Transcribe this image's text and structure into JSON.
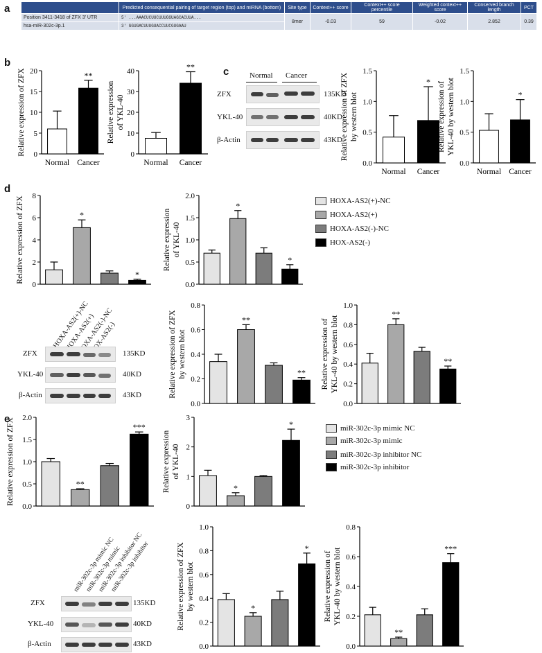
{
  "panels": {
    "a": "a",
    "b": "b",
    "c": "c",
    "d": "d",
    "e": "e"
  },
  "table": {
    "headers": [
      "",
      "Predicted consequential pairing of target region (top) and miRNA (bottom)",
      "Site type",
      "Context++ score",
      "Context++ score percentile",
      "Weighted context++ score",
      "Conserved branch length",
      "PCT"
    ],
    "row1_label": "Position 3411-3418 of ZFX 3' UTR",
    "row1_pairing": "5' ...AAACUCUUCUUUGGUAGCACUUA...",
    "row2_label": "hsa-miR-302c-3p.1",
    "row2_pairing": "3'        GGUGACUUUGUACCUUCGUGAAU",
    "row2_values": [
      "8mer",
      "-0.03",
      "59",
      "-0.02",
      "2.852",
      "0.39"
    ]
  },
  "blots": {
    "c": {
      "lanes": [
        "Normal",
        "Cancer"
      ],
      "rows": [
        "ZFX",
        "YKL-40",
        "β-Actin"
      ],
      "kd": [
        "135KD",
        "40KD",
        "43KD"
      ]
    },
    "d": {
      "lanes": [
        "HOXA-AS2(+)-NC",
        "HOXA-AS2(+)",
        "HOXA-AS2(-)-NC",
        "HOX-AS2(-)"
      ],
      "rows": [
        "ZFX",
        "YKL-40",
        "β-Actin"
      ],
      "kd": [
        "135KD",
        "40KD",
        "43KD"
      ]
    },
    "e": {
      "lanes": [
        "miR-302c-3p mimic NC",
        "miR-302c-3p mimic",
        "miR-302c-3p inhibitor NC",
        "miR-302c-3p inhibitor"
      ],
      "rows": [
        "ZFX",
        "YKL-40",
        "β-Actin"
      ],
      "kd": [
        "135KD",
        "40KD",
        "43KD"
      ]
    }
  },
  "legends": {
    "d": [
      {
        "label": "HOXA-AS2(+)-NC",
        "color": "#e4e4e4"
      },
      {
        "label": "HOXA-AS2(+)",
        "color": "#a8a8a8"
      },
      {
        "label": "HOXA-AS2(-)-NC",
        "color": "#7c7c7c"
      },
      {
        "label": "HOX-AS2(-)",
        "color": "#000000"
      }
    ],
    "e": [
      {
        "label": "miR-302c-3p mimic NC",
        "color": "#e4e4e4"
      },
      {
        "label": "miR-302c-3p mimic",
        "color": "#a8a8a8"
      },
      {
        "label": "miR-302c-3p inhibitor NC",
        "color": "#7c7c7c"
      },
      {
        "label": "miR-302c-3p inhibitor",
        "color": "#000000"
      }
    ]
  },
  "chart_data": [
    {
      "id": "b1",
      "type": "bar",
      "categories": [
        "Normal",
        "Cancer"
      ],
      "values": [
        6,
        15.8
      ],
      "errors": [
        4.3,
        1.9
      ],
      "colors": [
        "#ffffff",
        "#000000"
      ],
      "sig": [
        "",
        "**"
      ],
      "ylabel": "Relative expression of ZFX",
      "ylim": [
        0,
        20
      ]
    },
    {
      "id": "b2",
      "type": "bar",
      "categories": [
        "Normal",
        "Cancer"
      ],
      "values": [
        7.5,
        34
      ],
      "errors": [
        2.8,
        5.5
      ],
      "colors": [
        "#ffffff",
        "#000000"
      ],
      "sig": [
        "",
        "**"
      ],
      "ylabel": "Relative expression of YKL-40",
      "ylim": [
        0,
        40
      ]
    },
    {
      "id": "c1",
      "type": "bar",
      "categories": [
        "Normal",
        "Cancer"
      ],
      "values": [
        0.42,
        0.69
      ],
      "errors": [
        0.35,
        0.55
      ],
      "colors": [
        "#ffffff",
        "#000000"
      ],
      "sig": [
        "",
        "*"
      ],
      "ylabel": "Relative expression of ZFX by western blot",
      "ylim": [
        0,
        1.5
      ],
      "yticks": [
        0.0,
        0.5,
        1.0,
        1.5
      ]
    },
    {
      "id": "c2",
      "type": "bar",
      "categories": [
        "Normal",
        "Cancer"
      ],
      "values": [
        0.53,
        0.7
      ],
      "errors": [
        0.27,
        0.33
      ],
      "colors": [
        "#ffffff",
        "#000000"
      ],
      "sig": [
        "",
        "*"
      ],
      "ylabel": "Relative expression of YKL-40 by western blot",
      "ylim": [
        0,
        1.5
      ],
      "yticks": [
        0.0,
        0.5,
        1.0,
        1.5
      ]
    },
    {
      "id": "d1",
      "type": "bar",
      "categories": [
        "HOXA-AS2(+)-NC",
        "HOXA-AS2(+)",
        "HOXA-AS2(-)-NC",
        "HOX-AS2(-)"
      ],
      "values": [
        1.3,
        5.1,
        1.0,
        0.35
      ],
      "errors": [
        0.7,
        0.7,
        0.2,
        0.1
      ],
      "colors": [
        "#e4e4e4",
        "#a8a8a8",
        "#7c7c7c",
        "#000000"
      ],
      "sig": [
        "",
        "*",
        "",
        "*"
      ],
      "ylabel": "Relative expression of ZFX",
      "ylim": [
        0,
        8
      ],
      "yticks": [
        0,
        2,
        4,
        6,
        8
      ]
    },
    {
      "id": "d2",
      "type": "bar",
      "categories": [
        "HOXA-AS2(+)-NC",
        "HOXA-AS2(+)",
        "HOXA-AS2(-)-NC",
        "HOX-AS2(-)"
      ],
      "values": [
        0.7,
        1.48,
        0.7,
        0.34
      ],
      "errors": [
        0.07,
        0.18,
        0.12,
        0.1
      ],
      "colors": [
        "#e4e4e4",
        "#a8a8a8",
        "#7c7c7c",
        "#000000"
      ],
      "sig": [
        "",
        "*",
        "",
        "*"
      ],
      "ylabel": "Relative expression of YKL-40",
      "ylim": [
        0,
        2.0
      ],
      "yticks": [
        0.0,
        0.5,
        1.0,
        1.5,
        2.0
      ]
    },
    {
      "id": "d3",
      "type": "bar",
      "categories": [
        "HOXA-AS2(+)-NC",
        "HOXA-AS2(+)",
        "HOXA-AS2(-)-NC",
        "HOX-AS2(-)"
      ],
      "values": [
        0.34,
        0.6,
        0.31,
        0.19
      ],
      "errors": [
        0.06,
        0.04,
        0.02,
        0.02
      ],
      "colors": [
        "#e4e4e4",
        "#a8a8a8",
        "#7c7c7c",
        "#000000"
      ],
      "sig": [
        "",
        "**",
        "",
        "**"
      ],
      "ylabel": "Relative expression of ZFX by western blot",
      "ylim": [
        0,
        0.8
      ],
      "yticks": [
        0.0,
        0.2,
        0.4,
        0.6,
        0.8
      ]
    },
    {
      "id": "d4",
      "type": "bar",
      "categories": [
        "HOXA-AS2(+)-NC",
        "HOXA-AS2(+)",
        "HOXA-AS2(-)-NC",
        "HOX-AS2(-)"
      ],
      "values": [
        0.41,
        0.8,
        0.53,
        0.35
      ],
      "errors": [
        0.1,
        0.06,
        0.04,
        0.03
      ],
      "colors": [
        "#e4e4e4",
        "#a8a8a8",
        "#7c7c7c",
        "#000000"
      ],
      "sig": [
        "",
        "**",
        "",
        "**"
      ],
      "ylabel": "Relative expression of YKL-40 by western blot",
      "ylim": [
        0,
        1.0
      ],
      "yticks": [
        0.0,
        0.2,
        0.4,
        0.6,
        0.8,
        1.0
      ]
    },
    {
      "id": "e1",
      "type": "bar",
      "categories": [
        "miR-302c-3p mimic NC",
        "miR-302c-3p mimic",
        "miR-302c-3p inhibitor NC",
        "miR-302c-3p inhibitor"
      ],
      "values": [
        1.0,
        0.37,
        0.91,
        1.62
      ],
      "errors": [
        0.07,
        0.02,
        0.05,
        0.05
      ],
      "colors": [
        "#e4e4e4",
        "#a8a8a8",
        "#7c7c7c",
        "#000000"
      ],
      "sig": [
        "",
        "**",
        "",
        "***"
      ],
      "ylabel": "Relative expression of ZFX",
      "ylim": [
        0,
        2.0
      ],
      "yticks": [
        0.0,
        0.5,
        1.0,
        1.5,
        2.0
      ]
    },
    {
      "id": "e2",
      "type": "bar",
      "categories": [
        "miR-302c-3p mimic NC",
        "miR-302c-3p mimic",
        "miR-302c-3p inhibitor NC",
        "miR-302c-3p inhibitor"
      ],
      "values": [
        1.03,
        0.35,
        1.0,
        2.22
      ],
      "errors": [
        0.18,
        0.1,
        0.03,
        0.38
      ],
      "colors": [
        "#e4e4e4",
        "#a8a8a8",
        "#7c7c7c",
        "#000000"
      ],
      "sig": [
        "",
        "*",
        "",
        "*"
      ],
      "ylabel": "Relative expression of YKL-40",
      "ylim": [
        0,
        3
      ],
      "yticks": [
        0,
        1,
        2,
        3
      ]
    },
    {
      "id": "e3",
      "type": "bar",
      "categories": [
        "miR-302c-3p mimic NC",
        "miR-302c-3p mimic",
        "miR-302c-3p inhibitor NC",
        "miR-302c-3p inhibitor"
      ],
      "values": [
        0.39,
        0.25,
        0.39,
        0.69
      ],
      "errors": [
        0.05,
        0.03,
        0.07,
        0.09
      ],
      "colors": [
        "#e4e4e4",
        "#a8a8a8",
        "#7c7c7c",
        "#000000"
      ],
      "sig": [
        "",
        "*",
        "",
        "*"
      ],
      "ylabel": "Relative expression of ZFX by western blot",
      "ylim": [
        0,
        1.0
      ],
      "yticks": [
        0.0,
        0.2,
        0.4,
        0.6,
        0.8,
        1.0
      ]
    },
    {
      "id": "e4",
      "type": "bar",
      "categories": [
        "miR-302c-3p mimic NC",
        "miR-302c-3p mimic",
        "miR-302c-3p inhibitor NC",
        "miR-302c-3p inhibitor"
      ],
      "values": [
        0.21,
        0.05,
        0.21,
        0.56
      ],
      "errors": [
        0.05,
        0.01,
        0.04,
        0.06
      ],
      "colors": [
        "#e4e4e4",
        "#a8a8a8",
        "#7c7c7c",
        "#000000"
      ],
      "sig": [
        "",
        "**",
        "",
        "***"
      ],
      "ylabel": "Relative expression of YKL-40 by western blot",
      "ylim": [
        0,
        0.8
      ],
      "yticks": [
        0.0,
        0.2,
        0.4,
        0.6,
        0.8
      ]
    }
  ]
}
